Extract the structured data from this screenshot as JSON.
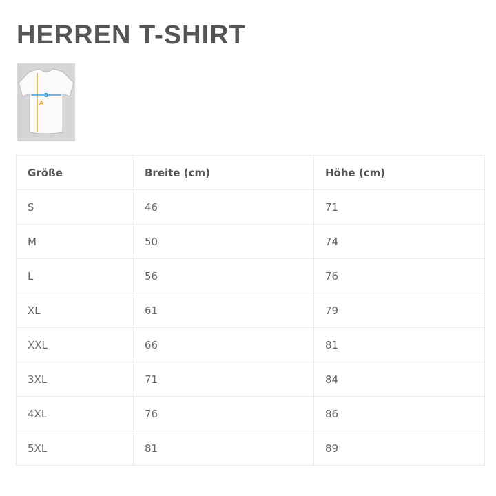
{
  "title": "HERREN T-SHIRT",
  "image": {
    "labels": {
      "width": "B",
      "height": "A"
    },
    "colors": {
      "width_line": "#3aa0d8",
      "height_line": "#e8a040"
    }
  },
  "table": {
    "headers": [
      "Größe",
      "Breite (cm)",
      "Höhe (cm)"
    ],
    "rows": [
      [
        "S",
        "46",
        "71"
      ],
      [
        "M",
        "50",
        "74"
      ],
      [
        "L",
        "56",
        "76"
      ],
      [
        "XL",
        "61",
        "79"
      ],
      [
        "XXL",
        "66",
        "81"
      ],
      [
        "3XL",
        "71",
        "84"
      ],
      [
        "4XL",
        "76",
        "86"
      ],
      [
        "5XL",
        "81",
        "89"
      ]
    ]
  }
}
